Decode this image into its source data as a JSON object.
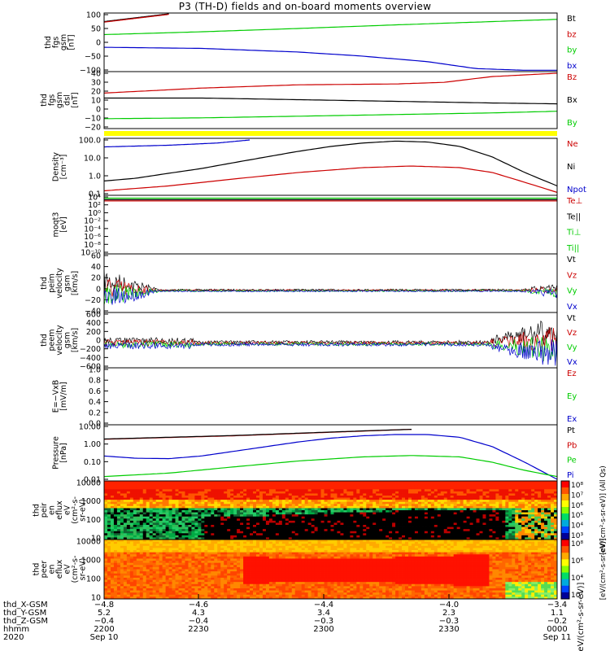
{
  "title": "P3 (TH-D) fields and on-board moments overview",
  "colors": {
    "black": "#000000",
    "red": "#cc0000",
    "green": "#00cc00",
    "blue": "#0000cc",
    "yellow": "#ffff00"
  },
  "chart_data": [
    {
      "id": "fgs",
      "type": "line",
      "ylabel": [
        "thd",
        "fgs",
        "gsm",
        "[nT]"
      ],
      "yticks": [
        "100",
        "50",
        "0",
        "−50",
        "−100"
      ],
      "ylim": [
        -100,
        100
      ],
      "legend": [
        {
          "name": "Bt",
          "color": "black"
        },
        {
          "name": "bz",
          "color": "red"
        },
        {
          "name": "by",
          "color": "green"
        },
        {
          "name": "bx",
          "color": "blue"
        }
      ],
      "series": [
        {
          "name": "Bt",
          "x": [
            -4.8,
            -4.6
          ],
          "values": [
            75,
            103
          ]
        },
        {
          "name": "bz",
          "x": [
            -4.8,
            -4.6
          ],
          "values": [
            73,
            101
          ]
        },
        {
          "name": "by",
          "x": [
            -4.8,
            -4.5,
            -4.2,
            -3.9,
            -3.4
          ],
          "values": [
            28,
            38,
            50,
            63,
            83
          ]
        },
        {
          "name": "bx",
          "x": [
            -4.8,
            -4.5,
            -4.2,
            -4.0,
            -3.8,
            -3.65,
            -3.5,
            -3.4
          ],
          "values": [
            -18,
            -22,
            -35,
            -50,
            -70,
            -95,
            -101,
            -101
          ]
        }
      ]
    },
    {
      "id": "fgs_dsl",
      "type": "line",
      "ylabel": [
        "thd",
        "fgs",
        "gsm",
        "dsl",
        "[nT]"
      ],
      "yticks": [
        "40",
        "30",
        "20",
        "10",
        "0",
        "−10",
        "−20"
      ],
      "ylim": [
        -25,
        40
      ],
      "legend": [
        {
          "name": "Bz",
          "color": "red"
        },
        {
          "name": "Bx",
          "color": "black"
        },
        {
          "name": "By",
          "color": "green"
        }
      ],
      "series": [
        {
          "name": "Bz",
          "x": [
            -4.8,
            -4.5,
            -4.2,
            -3.9,
            -3.75,
            -3.6,
            -3.4
          ],
          "values": [
            16,
            22,
            26,
            27,
            29,
            36,
            40
          ]
        },
        {
          "name": "Bx",
          "x": [
            -4.8,
            -4.5,
            -4.2,
            -3.9,
            -3.6,
            -3.4
          ],
          "values": [
            10,
            10,
            8,
            6,
            4,
            3
          ]
        },
        {
          "name": "By",
          "x": [
            -4.8,
            -4.5,
            -4.2,
            -3.9,
            -3.6,
            -3.4
          ],
          "values": [
            -15,
            -14,
            -12,
            -10,
            -8,
            -6
          ]
        }
      ]
    },
    {
      "id": "density",
      "type": "line",
      "log": true,
      "ylabel": [
        "Density",
        "[cm⁻³]"
      ],
      "yticks": [
        "100.0",
        "10.0",
        "1.0",
        "0.1"
      ],
      "ylim": [
        0.1,
        200
      ],
      "legend": [
        {
          "name": "Ne",
          "color": "red"
        },
        {
          "name": "Ni",
          "color": "black"
        },
        {
          "name": "Npot",
          "color": "blue"
        }
      ],
      "series": [
        {
          "name": "Npot",
          "x": [
            -4.8,
            -4.6,
            -4.45,
            -4.35
          ],
          "values": [
            75,
            95,
            130,
            200
          ]
        },
        {
          "name": "Ni",
          "x": [
            -4.8,
            -4.7,
            -4.6,
            -4.5,
            -4.4,
            -4.3,
            -4.2,
            -4.1,
            -4.0,
            -3.9,
            -3.8,
            -3.7,
            -3.6,
            -3.5,
            -3.4
          ],
          "values": [
            0.6,
            0.9,
            1.8,
            3.5,
            8,
            18,
            40,
            80,
            130,
            170,
            150,
            80,
            18,
            2,
            0.3
          ]
        },
        {
          "name": "Ne",
          "x": [
            -4.8,
            -4.6,
            -4.4,
            -4.2,
            -4.0,
            -3.85,
            -3.7,
            -3.6,
            -3.5,
            -3.4
          ],
          "values": [
            0.15,
            0.3,
            0.8,
            2,
            4,
            5,
            4,
            2,
            0.5,
            0.12
          ]
        }
      ]
    },
    {
      "id": "moqt3",
      "type": "line",
      "log": true,
      "ylabel": [
        "moqt3",
        "[eV]"
      ],
      "yticks": [
        "10⁴",
        "10²",
        "10⁰",
        "10⁻²",
        "10⁻⁴",
        "10⁻⁶",
        "10⁻⁸",
        "10⁻¹⁰"
      ],
      "ylim": [
        "1e-10",
        "1e4"
      ],
      "legend": [
        {
          "name": "Te⊥",
          "color": "red"
        },
        {
          "name": "Te||",
          "color": "black"
        },
        {
          "name": "Ti⊥",
          "color": "green"
        },
        {
          "name": "Ti||",
          "color": "green"
        }
      ],
      "series": [
        {
          "name": "Te⊥",
          "x": [
            -4.8,
            -3.4
          ],
          "values": [
            1000,
            1000
          ]
        },
        {
          "name": "Te||",
          "x": [
            -4.8,
            -3.4
          ],
          "values": [
            2000,
            2000
          ]
        },
        {
          "name": "Ti⊥",
          "x": [
            -4.8,
            -3.4
          ],
          "values": [
            5000,
            5000
          ]
        }
      ]
    },
    {
      "id": "peim",
      "type": "line",
      "ylabel": [
        "thd",
        "peim",
        "velocity",
        "gsm",
        "[km/s]"
      ],
      "yticks": [
        "60",
        "40",
        "20",
        "0",
        "−20",
        "−40"
      ],
      "ylim": [
        -40,
        60
      ],
      "legend": [
        {
          "name": "Vt",
          "color": "black"
        },
        {
          "name": "Vz",
          "color": "red"
        },
        {
          "name": "Vy",
          "color": "green"
        },
        {
          "name": "Vx",
          "color": "blue"
        }
      ],
      "series": []
    },
    {
      "id": "peem",
      "type": "line",
      "ylabel": [
        "thd",
        "peem",
        "velocity",
        "gsm",
        "[km/s]"
      ],
      "yticks": [
        "600",
        "400",
        "200",
        "0",
        "−200",
        "−400",
        "−600"
      ],
      "ylim": [
        -600,
        600
      ],
      "legend": [
        {
          "name": "Vt",
          "color": "black"
        },
        {
          "name": "Vz",
          "color": "red"
        },
        {
          "name": "Vy",
          "color": "green"
        },
        {
          "name": "Vx",
          "color": "blue"
        }
      ],
      "series": []
    },
    {
      "id": "efield",
      "type": "line",
      "ylabel": [
        "E=−VxB",
        "[mV/m]"
      ],
      "yticks": [
        "1.0",
        "0.8",
        "0.6",
        "0.4",
        "0.2",
        "0.0"
      ],
      "ylim": [
        0,
        1
      ],
      "legend": [
        {
          "name": "Ez",
          "color": "red"
        },
        {
          "name": "Ey",
          "color": "green"
        },
        {
          "name": "Ex",
          "color": "blue"
        }
      ],
      "series": []
    },
    {
      "id": "pressure",
      "type": "line",
      "log": true,
      "ylabel": [
        "Pressure",
        "[nPa]"
      ],
      "yticks": [
        "10.00",
        "1.00",
        "0.10",
        "0.01"
      ],
      "ylim": [
        0.008,
        20
      ],
      "legend": [
        {
          "name": "Pt",
          "color": "black"
        },
        {
          "name": "Pb",
          "color": "red"
        },
        {
          "name": "Pe",
          "color": "green"
        },
        {
          "name": "Pi",
          "color": "blue"
        }
      ],
      "series": [
        {
          "name": "Pb",
          "x": [
            -4.8,
            -4.4,
            -4.0,
            -3.85
          ],
          "values": [
            3,
            5,
            10,
            13
          ]
        },
        {
          "name": "Pt",
          "x": [
            -4.8,
            -4.4,
            -4.0,
            -3.85
          ],
          "values": [
            3.1,
            5.2,
            10.3,
            13
          ]
        },
        {
          "name": "Pi",
          "x": [
            -4.8,
            -4.7,
            -4.6,
            -4.5,
            -4.4,
            -4.3,
            -4.2,
            -4.1,
            -4.0,
            -3.9,
            -3.8,
            -3.7,
            -3.6,
            -3.5,
            -3.4
          ],
          "values": [
            0.25,
            0.18,
            0.17,
            0.25,
            0.5,
            1,
            2,
            3.5,
            5,
            6,
            6,
            4,
            1,
            0.1,
            0.008
          ]
        },
        {
          "name": "Pe",
          "x": [
            -4.8,
            -4.6,
            -4.4,
            -4.2,
            -4.0,
            -3.85,
            -3.7,
            -3.6,
            -3.5,
            -3.4
          ],
          "values": [
            0.012,
            0.02,
            0.05,
            0.12,
            0.22,
            0.27,
            0.22,
            0.1,
            0.03,
            0.012
          ]
        }
      ]
    },
    {
      "id": "peir",
      "type": "heatmap",
      "ylabel": [
        "thd",
        "peir",
        "en",
        "eflux",
        "eV",
        "(cm²-s-",
        "sr-eV)"
      ],
      "yticks": [
        "10000",
        "1000",
        "100",
        "10"
      ],
      "colorbar_ticks": [
        "10⁸",
        "10⁷",
        "10⁶",
        "10⁵",
        "10⁴",
        "10³"
      ],
      "colorbar_label": "[eV/(cm²-s-sr-eV)] (All Qs)"
    },
    {
      "id": "peer",
      "type": "heatmap",
      "ylabel": [
        "thd",
        "peer",
        "en",
        "eflux",
        "eV",
        "(cm²-s-",
        "sr-eV)"
      ],
      "yticks": [
        "10000",
        "1000",
        "100",
        "10"
      ],
      "colorbar_ticks": [
        "10⁸",
        "10⁶",
        "10⁴",
        "10²"
      ],
      "colorbar_label": "[eV/(cm²-s-sr-eV)]"
    }
  ],
  "x_axis": {
    "row_labels": [
      "thd_X-GSM",
      "thd_Y-GSM",
      "thd_Z-GSM",
      "hhmm",
      "2020"
    ],
    "ticks": [
      {
        "x": "−4.8",
        "y": "5.2",
        "z": "−0.4",
        "hhmm": "2200",
        "date": "Sep 10"
      },
      {
        "x": "−4.6",
        "y": "4.3",
        "z": "−0.4",
        "hhmm": "2230",
        "date": ""
      },
      {
        "x": "−4.4",
        "y": "3.4",
        "z": "−0.3",
        "hhmm": "2300",
        "date": ""
      },
      {
        "x": "−4.0",
        "y": "2.3",
        "z": "−0.3",
        "hhmm": "2330",
        "date": ""
      },
      {
        "x": "−3.4",
        "y": "1.1",
        "z": "−0.2",
        "hhmm": "0000",
        "date": "Sep 11"
      }
    ]
  },
  "bottom_label": "[eV/(cm²-s-sr-eV)]"
}
